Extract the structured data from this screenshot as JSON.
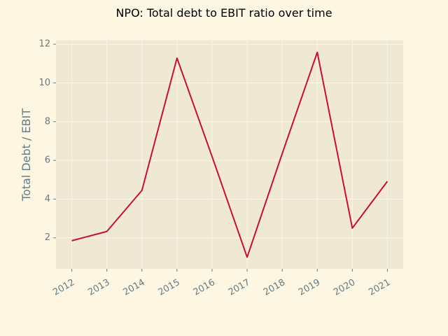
{
  "chart_data": {
    "type": "line",
    "title": "NPO: Total debt to EBIT ratio over time",
    "xlabel": "",
    "ylabel": "Total Debt / EBIT",
    "categories": [
      "2012",
      "2013",
      "2014",
      "2015",
      "2016",
      "2017",
      "2018",
      "2019",
      "2020",
      "2021"
    ],
    "series": [
      {
        "values": [
          1.85,
          2.33,
          4.45,
          11.28,
          6.2,
          1.0,
          6.35,
          11.58,
          2.5,
          4.92
        ]
      }
    ],
    "yticks": [
      "2",
      "4",
      "6",
      "8",
      "10",
      "12"
    ],
    "ylim": [
      0.4,
      12.2
    ],
    "grid": true,
    "legend": "none",
    "colors": {
      "background": "#fdf6e3",
      "plot_area": "#eee8d5",
      "grid": "#fdf6e3",
      "line": "#c8102e",
      "text": "#657b83"
    }
  }
}
